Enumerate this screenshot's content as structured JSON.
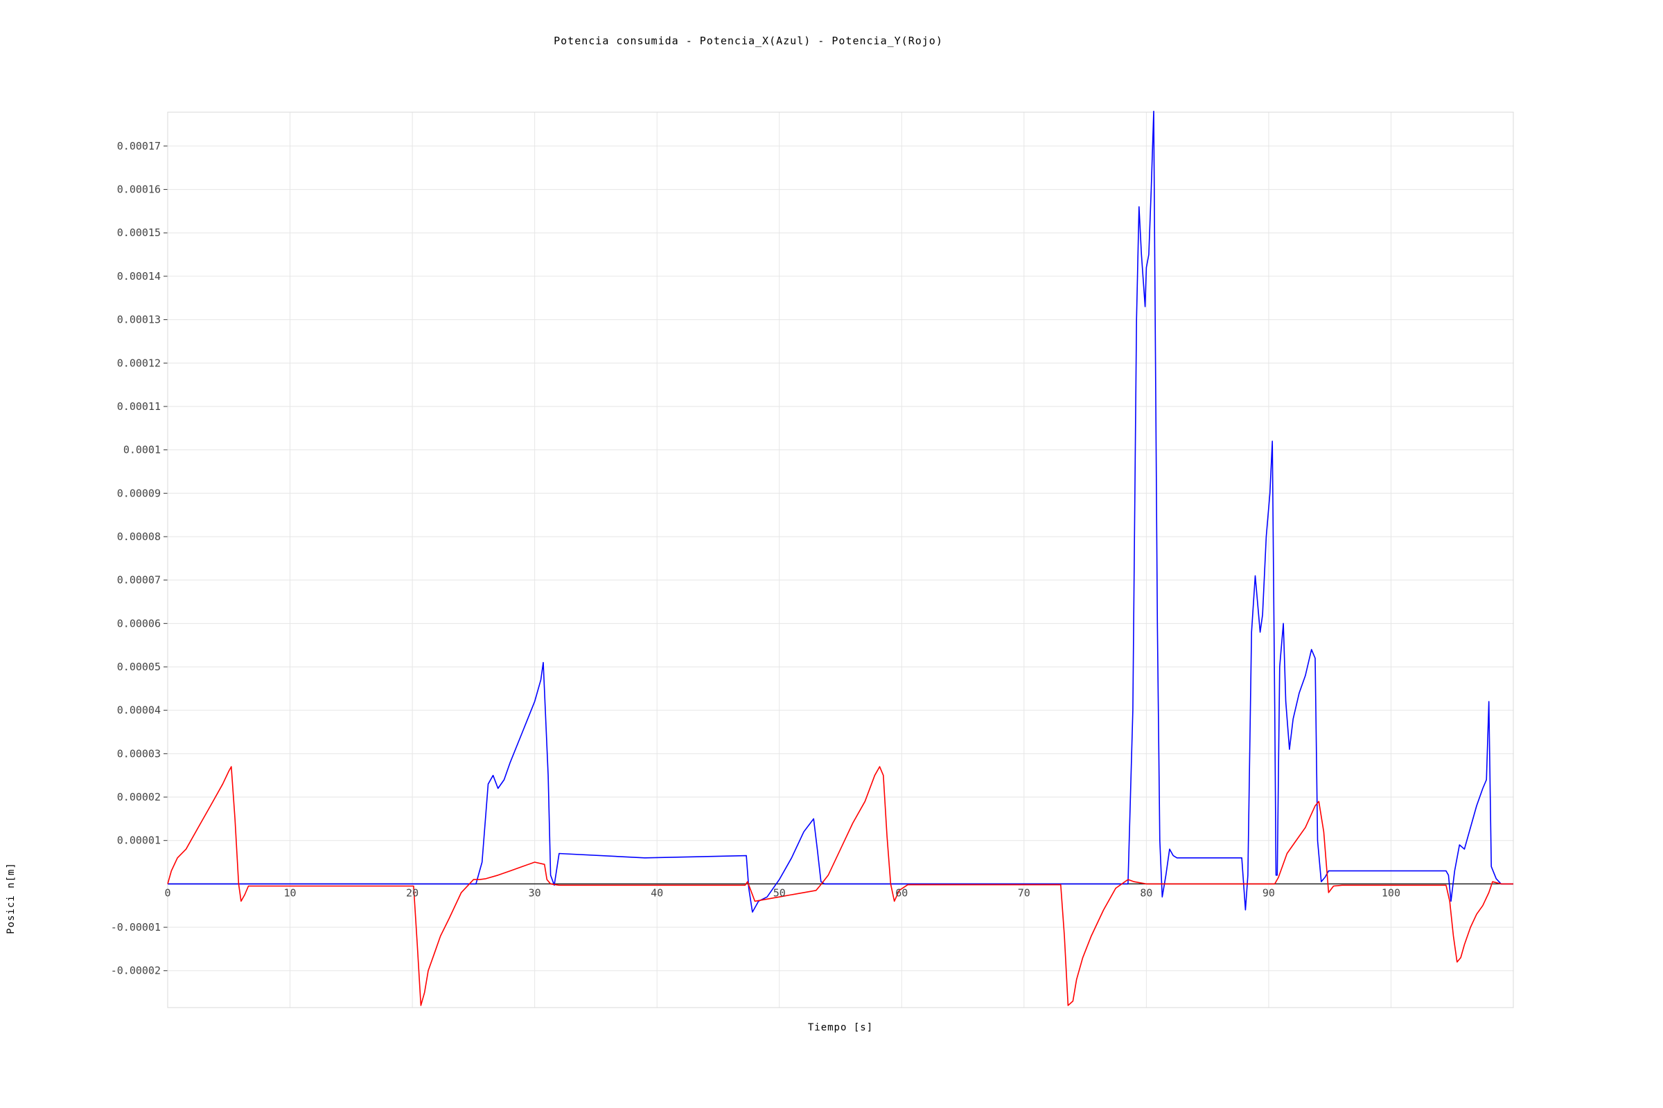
{
  "chart_data": {
    "type": "line",
    "title": "Potencia consumida - Potencia_X(Azul) - Potencia_Y(Rojo)",
    "xlabel": "Tiempo [s]",
    "ylabel": "Posici n[m]",
    "xlim": [
      0,
      110
    ],
    "ylim": [
      -2.85e-05,
      0.0001778
    ],
    "x_ticks": [
      0,
      10,
      20,
      30,
      40,
      50,
      60,
      70,
      80,
      90,
      100
    ],
    "x_tick_labels": [
      "0",
      "10",
      "20",
      "30",
      "40",
      "50",
      "60",
      "70",
      "80",
      "90",
      "100"
    ],
    "y_ticks": [
      -2e-05,
      -1e-05,
      1e-05,
      2e-05,
      3e-05,
      4e-05,
      5e-05,
      6e-05,
      7e-05,
      8e-05,
      9e-05,
      0.0001,
      0.00011,
      0.00012,
      0.00013,
      0.00014,
      0.00015,
      0.00016,
      0.00017
    ],
    "y_tick_labels": [
      "-0.00002",
      "-0.00001",
      "0.00001",
      "0.00002",
      "0.00003",
      "0.00004",
      "0.00005",
      "0.00006",
      "0.00007",
      "0.00008",
      "0.00009",
      "0.0001",
      "0.00011",
      "0.00012",
      "0.00013",
      "0.00014",
      "0.00015",
      "0.00016",
      "0.00017"
    ],
    "grid": true,
    "series": [
      {
        "name": "Potencia_X",
        "color": "#0000ff",
        "x": [
          0,
          25.2,
          25.7,
          26.2,
          26.6,
          27.0,
          27.5,
          28.0,
          29.0,
          30.0,
          30.5,
          30.7,
          31.1,
          31.3,
          31.6,
          32.0,
          39.0,
          47.3,
          47.5,
          47.8,
          48.3,
          49.0,
          50.0,
          51.0,
          52.0,
          52.8,
          53.1,
          53.4,
          53.7,
          54.0,
          78.5,
          78.9,
          79.2,
          79.4,
          79.6,
          79.9,
          80.0,
          80.2,
          80.4,
          80.6,
          80.9,
          81.1,
          81.3,
          81.6,
          81.9,
          82.2,
          82.5,
          83.0,
          85.0,
          87.8,
          88.1,
          88.3,
          88.6,
          88.9,
          89.3,
          89.5,
          89.8,
          90.1,
          90.3,
          90.5,
          90.6,
          90.7,
          90.9,
          91.2,
          91.4,
          91.7,
          92.0,
          92.5,
          93.0,
          93.5,
          93.8,
          94.0,
          94.3,
          94.6,
          94.9,
          95.3,
          96.0,
          100.0,
          104.5,
          104.7,
          104.9,
          105.2,
          105.6,
          106.0,
          106.5,
          107.0,
          107.5,
          107.8,
          108.0,
          108.2,
          108.6,
          109.0,
          110.0
        ],
        "y": [
          0,
          0,
          5e-06,
          2.3e-05,
          2.5e-05,
          2.2e-05,
          2.4e-05,
          2.8e-05,
          3.5e-05,
          4.2e-05,
          4.7e-05,
          5.1e-05,
          2.5e-05,
          2e-06,
          -3e-07,
          7e-06,
          6e-06,
          6.5e-06,
          -1e-06,
          -6.5e-06,
          -4e-06,
          -3e-06,
          1e-06,
          6e-06,
          1.2e-05,
          1.5e-05,
          8e-06,
          5e-07,
          0,
          0,
          0,
          4e-05,
          0.00013,
          0.000156,
          0.000145,
          0.000133,
          0.000142,
          0.000145,
          0.00016,
          0.000178,
          6e-05,
          1e-05,
          -3e-06,
          2e-06,
          8e-06,
          6.5e-06,
          6e-06,
          6e-06,
          6e-06,
          6e-06,
          -6e-06,
          2e-06,
          5.8e-05,
          7.1e-05,
          5.8e-05,
          6.2e-05,
          8e-05,
          9e-05,
          0.000102,
          4e-05,
          2e-06,
          2e-06,
          5e-05,
          6e-05,
          4.2e-05,
          3.1e-05,
          3.8e-05,
          4.4e-05,
          4.8e-05,
          5.4e-05,
          5.2e-05,
          1e-05,
          5e-07,
          1.5e-06,
          3e-06,
          3e-06,
          3e-06,
          3e-06,
          3e-06,
          2e-06,
          -4e-06,
          3e-06,
          9e-06,
          8e-06,
          1.3e-05,
          1.8e-05,
          2.2e-05,
          2.4e-05,
          4.2e-05,
          4e-06,
          1.2e-06,
          0,
          0
        ]
      },
      {
        "name": "Potencia_Y",
        "color": "#ff0000",
        "x": [
          0,
          0.3,
          0.8,
          1.5,
          2.5,
          3.5,
          4.5,
          5.0,
          5.2,
          5.5,
          5.8,
          6.0,
          6.3,
          6.6,
          7.0,
          10.0,
          15.0,
          20.0,
          20.1,
          20.4,
          20.7,
          21.0,
          21.3,
          21.8,
          22.3,
          23.0,
          24.0,
          25.0,
          25.5,
          26.0,
          27.0,
          28.0,
          29.0,
          30.0,
          30.8,
          31.0,
          31.3,
          32.0,
          39.0,
          47.2,
          47.4,
          48.0,
          49.0,
          50.0,
          51.0,
          52.0,
          53.0,
          53.3,
          54.0,
          55.0,
          56.0,
          57.0,
          57.8,
          58.2,
          58.5,
          58.8,
          59.1,
          59.4,
          59.8,
          60.5,
          61.0,
          70.0,
          73.0,
          73.3,
          73.6,
          74.0,
          74.3,
          74.8,
          75.5,
          76.5,
          77.5,
          78.5,
          79.0,
          80.0,
          85.0,
          90.5,
          90.8,
          91.5,
          92.0,
          93.0,
          93.8,
          94.1,
          94.5,
          94.9,
          95.3,
          96.0,
          104.5,
          104.8,
          105.1,
          105.4,
          105.7,
          106.0,
          106.5,
          107.0,
          107.5,
          108.0,
          108.3,
          109.0,
          110.0
        ],
        "y": [
          0,
          3e-06,
          6e-06,
          8e-06,
          1.3e-05,
          1.8e-05,
          2.3e-05,
          2.6e-05,
          2.7e-05,
          1.5e-05,
          0,
          -4e-06,
          -2.5e-06,
          -5e-07,
          -5e-07,
          -5e-07,
          -5e-07,
          -5e-07,
          -5e-07,
          -1.4e-05,
          -2.8e-05,
          -2.5e-05,
          -2e-05,
          -1.6e-05,
          -1.2e-05,
          -8e-06,
          -2e-06,
          1e-06,
          1e-06,
          1.2e-06,
          2e-06,
          3e-06,
          4e-06,
          5e-06,
          4.5e-06,
          1e-06,
          0,
          -3e-07,
          -3e-07,
          -3e-07,
          5e-07,
          -4e-06,
          -3.5e-06,
          -3e-06,
          -2.5e-06,
          -2e-06,
          -1.5e-06,
          -5e-07,
          2e-06,
          8e-06,
          1.4e-05,
          1.9e-05,
          2.5e-05,
          2.7e-05,
          2.5e-05,
          1.1e-05,
          0,
          -4e-06,
          -1.5e-06,
          -2e-07,
          -2e-07,
          -2e-07,
          -2e-07,
          -1.2e-05,
          -2.8e-05,
          -2.7e-05,
          -2.2e-05,
          -1.7e-05,
          -1.2e-05,
          -6e-06,
          -1e-06,
          1e-06,
          5e-07,
          0,
          0,
          0,
          1.5e-06,
          7e-06,
          9e-06,
          1.3e-05,
          1.8e-05,
          1.9e-05,
          1.2e-05,
          -2e-06,
          -5e-07,
          -3e-07,
          -3e-07,
          -4e-06,
          -1.2e-05,
          -1.8e-05,
          -1.7e-05,
          -1.4e-05,
          -1e-05,
          -7e-06,
          -5e-06,
          -2e-06,
          5e-07,
          0,
          0
        ]
      }
    ]
  }
}
